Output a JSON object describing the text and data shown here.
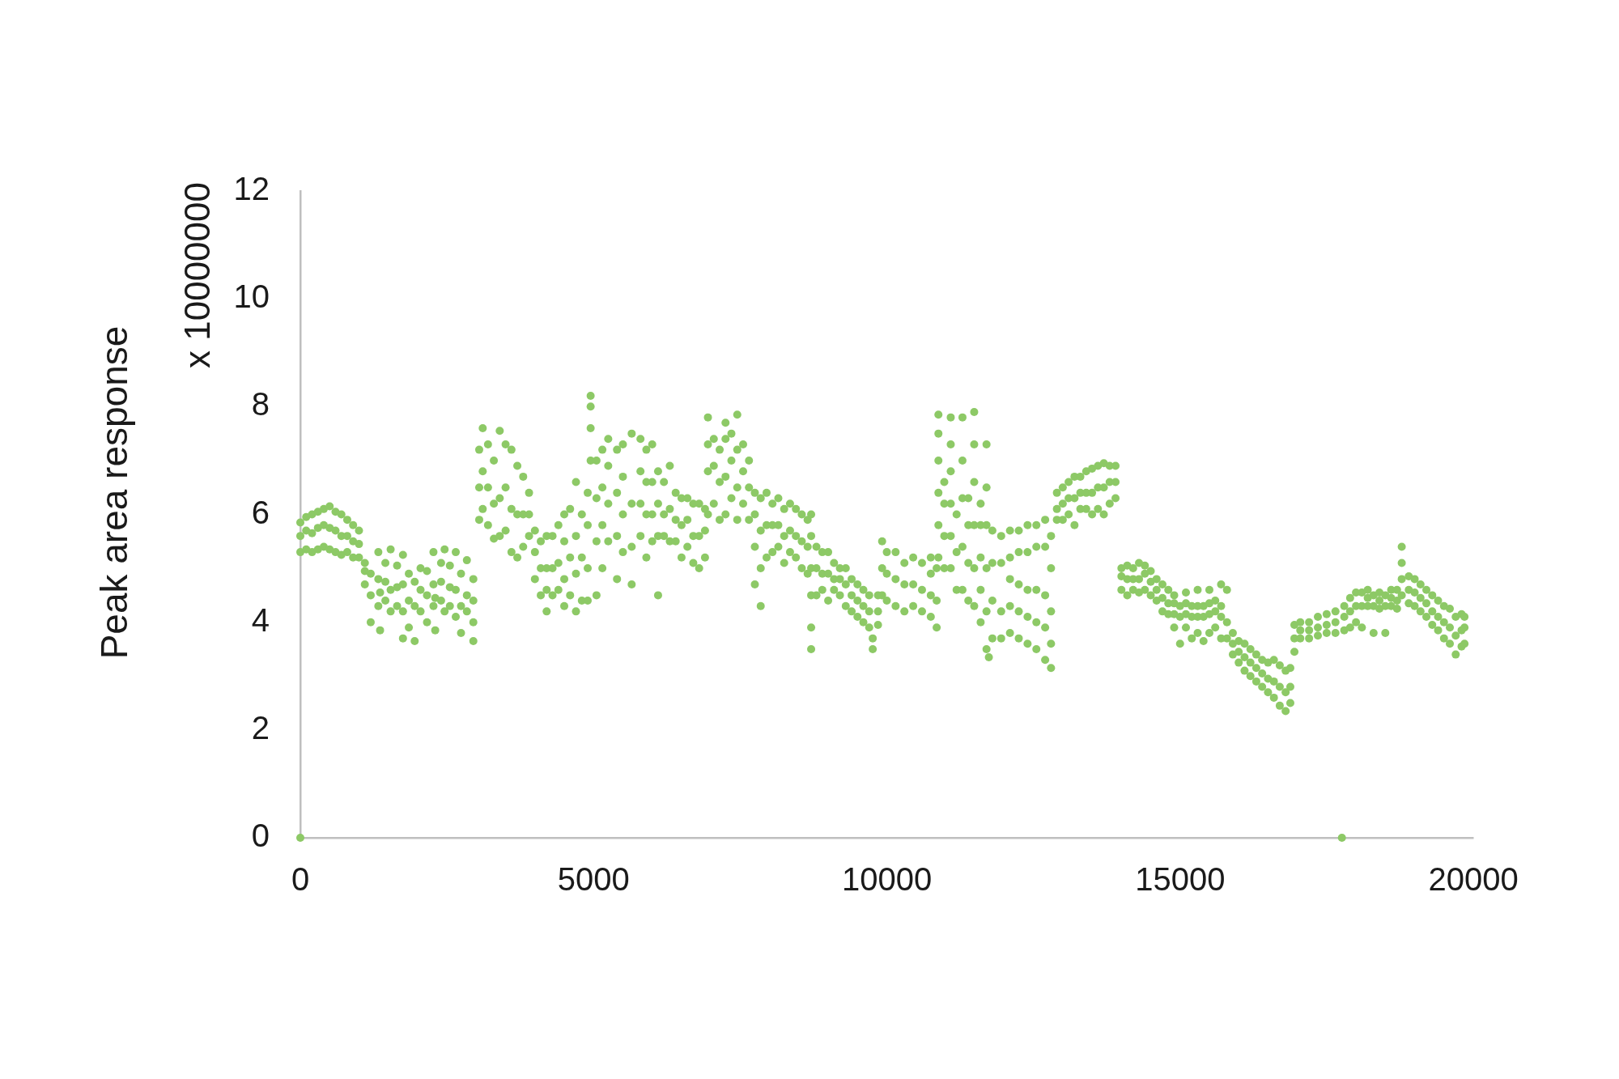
{
  "chart_data": {
    "type": "scatter",
    "ylabel": "Peak area response",
    "annotations": [
      "x 10000000"
    ],
    "color": "#8dc966",
    "marker": "circle",
    "xlim": [
      0,
      20000
    ],
    "xticks": [
      0,
      5000,
      10000,
      15000,
      20000
    ],
    "ylim": [
      0,
      12
    ],
    "yticks": [
      0,
      2,
      4,
      6,
      8,
      10,
      12
    ],
    "x": [
      0,
      0,
      0,
      0,
      100,
      100,
      100,
      200,
      200,
      200,
      300,
      300,
      300,
      400,
      400,
      400,
      500,
      500,
      500,
      600,
      600,
      600,
      700,
      700,
      700,
      800,
      800,
      800,
      900,
      900,
      900,
      1000,
      1000,
      1000,
      1100,
      1100,
      1100,
      1200,
      1200,
      1200,
      1330,
      1330,
      1330,
      1360,
      1360,
      1450,
      1450,
      1450,
      1540,
      1540,
      1540,
      1650,
      1650,
      1650,
      1750,
      1750,
      1750,
      1750,
      1850,
      1850,
      1850,
      1950,
      1950,
      1950,
      2050,
      2050,
      2050,
      2160,
      2160,
      2160,
      2270,
      2270,
      2270,
      2300,
      2300,
      2400,
      2400,
      2400,
      2460,
      2460,
      2550,
      2550,
      2550,
      2650,
      2650,
      2650,
      2740,
      2740,
      2740,
      2840,
      2840,
      2840,
      2950,
      2950,
      2950,
      2950,
      3050,
      3050,
      3050,
      3110,
      3110,
      3110,
      3200,
      3200,
      3200,
      3300,
      3300,
      3300,
      3400,
      3400,
      3400,
      3500,
      3500,
      3500,
      3600,
      3600,
      3600,
      3700,
      3700,
      3700,
      3800,
      3800,
      3800,
      3900,
      3900,
      3900,
      4000,
      4000,
      4000,
      4100,
      4100,
      4100,
      4200,
      4200,
      4200,
      4200,
      4300,
      4300,
      4300,
      4400,
      4400,
      4400,
      4500,
      4500,
      4500,
      4500,
      4600,
      4600,
      4600,
      4700,
      4700,
      4700,
      4700,
      4800,
      4800,
      4800,
      4900,
      4900,
      4900,
      4900,
      4950,
      4950,
      4950,
      4950,
      5050,
      5050,
      5050,
      5050,
      5150,
      5150,
      5150,
      5150,
      5250,
      5250,
      5250,
      5250,
      5400,
      5400,
      5400,
      5400,
      5500,
      5500,
      5500,
      5500,
      5650,
      5650,
      5650,
      5650,
      5800,
      5800,
      5800,
      5800,
      5900,
      5900,
      5900,
      5900,
      6000,
      6000,
      6000,
      6000,
      6100,
      6100,
      6100,
      6100,
      6200,
      6200,
      6200,
      6300,
      6300,
      6300,
      6400,
      6400,
      6400,
      6500,
      6500,
      6500,
      6600,
      6600,
      6600,
      6700,
      6700,
      6700,
      6800,
      6800,
      6800,
      6900,
      6900,
      6900,
      6950,
      6950,
      6950,
      6950,
      7050,
      7050,
      7050,
      7150,
      7150,
      7150,
      7250,
      7250,
      7250,
      7250,
      7350,
      7350,
      7350,
      7450,
      7450,
      7450,
      7450,
      7550,
      7550,
      7550,
      7650,
      7650,
      7650,
      7750,
      7750,
      7750,
      7750,
      7850,
      7850,
      7850,
      7850,
      7950,
      7950,
      7950,
      8050,
      8050,
      8050,
      8150,
      8150,
      8150,
      8250,
      8250,
      8250,
      8350,
      8350,
      8350,
      8450,
      8450,
      8450,
      8550,
      8550,
      8550,
      8650,
      8650,
      8650,
      8710,
      8710,
      8710,
      8710,
      8710,
      8710,
      8800,
      8800,
      8800,
      8900,
      8900,
      8900,
      9000,
      9000,
      9000,
      9100,
      9100,
      9100,
      9200,
      9200,
      9200,
      9300,
      9300,
      9300,
      9400,
      9400,
      9400,
      9500,
      9500,
      9500,
      9600,
      9600,
      9600,
      9700,
      9700,
      9700,
      9760,
      9760,
      9850,
      9850,
      9850,
      9920,
      9920,
      9920,
      10000,
      10000,
      10000,
      10150,
      10150,
      10150,
      10300,
      10300,
      10300,
      10450,
      10450,
      10450,
      10600,
      10600,
      10600,
      10750,
      10750,
      10750,
      10750,
      10850,
      10850,
      10850,
      10880,
      10880,
      10880,
      10880,
      10880,
      10880,
      10980,
      10980,
      10980,
      10980,
      11090,
      11090,
      11090,
      11090,
      11090,
      11090,
      11190,
      11190,
      11190,
      11290,
      11290,
      11290,
      11290,
      11290,
      11390,
      11390,
      11390,
      11390,
      11490,
      11490,
      11490,
      11490,
      11490,
      11490,
      11600,
      11600,
      11600,
      11600,
      11600,
      11700,
      11700,
      11700,
      11700,
      11700,
      11700,
      11740,
      11800,
      11800,
      11800,
      11800,
      11950,
      11950,
      11950,
      11950,
      12100,
      12100,
      12100,
      12100,
      12100,
      12250,
      12250,
      12250,
      12250,
      12250,
      12400,
      12400,
      12400,
      12400,
      12400,
      12550,
      12550,
      12550,
      12550,
      12550,
      12700,
      12700,
      12700,
      12700,
      12700,
      12800,
      12800,
      12800,
      12800,
      12800,
      12900,
      12900,
      12900,
      13000,
      13000,
      13000,
      13100,
      13100,
      13100,
      13200,
      13200,
      13200,
      13300,
      13300,
      13300,
      13400,
      13400,
      13400,
      13500,
      13500,
      13500,
      13600,
      13600,
      13600,
      13700,
      13700,
      13700,
      13800,
      13800,
      13800,
      13900,
      13900,
      13900,
      14000,
      14000,
      14000,
      14100,
      14100,
      14100,
      14200,
      14200,
      14200,
      14300,
      14300,
      14300,
      14400,
      14400,
      14400,
      14500,
      14500,
      14500,
      14600,
      14600,
      14600,
      14700,
      14700,
      14700,
      14800,
      14800,
      14800,
      14900,
      14900,
      14900,
      14900,
      15000,
      15000,
      15000,
      15100,
      15100,
      15100,
      15100,
      15200,
      15200,
      15200,
      15300,
      15300,
      15300,
      15300,
      15400,
      15400,
      15400,
      15500,
      15500,
      15500,
      15500,
      15600,
      15600,
      15600,
      15700,
      15700,
      15700,
      15700,
      15800,
      15800,
      15800,
      15900,
      15900,
      15900,
      16000,
      16000,
      16000,
      16100,
      16100,
      16100,
      16200,
      16200,
      16200,
      16300,
      16300,
      16300,
      16400,
      16400,
      16400,
      16500,
      16500,
      16500,
      16600,
      16600,
      16600,
      16700,
      16700,
      16700,
      16800,
      16800,
      16800,
      16880,
      16880,
      16880,
      16950,
      16950,
      16950,
      17050,
      17050,
      17050,
      17200,
      17200,
      17200,
      17350,
      17350,
      17350,
      17500,
      17500,
      17500,
      17650,
      17650,
      17650,
      17760,
      17800,
      17800,
      17800,
      17900,
      17900,
      17900,
      18000,
      18000,
      18000,
      18100,
      18100,
      18100,
      18200,
      18200,
      18200,
      18300,
      18300,
      18300,
      18400,
      18400,
      18400,
      18500,
      18500,
      18500,
      18600,
      18600,
      18600,
      18700,
      18700,
      18700,
      18780,
      18780,
      18780,
      18780,
      18900,
      18900,
      18900,
      19000,
      19000,
      19000,
      19100,
      19100,
      19100,
      19200,
      19200,
      19200,
      19300,
      19300,
      19300,
      19400,
      19400,
      19400,
      19500,
      19500,
      19500,
      19600,
      19600,
      19600,
      19700,
      19700,
      19700,
      19800,
      19800,
      19800,
      19850,
      19850,
      19850
    ],
    "values": [
      0,
      5.3,
      5.6,
      5.85,
      5.35,
      5.7,
      5.95,
      5.3,
      5.65,
      6.0,
      5.35,
      5.75,
      6.05,
      5.4,
      5.8,
      6.1,
      5.35,
      5.75,
      6.15,
      5.3,
      5.7,
      6.05,
      5.25,
      5.6,
      6.0,
      5.3,
      5.6,
      5.9,
      5.2,
      5.5,
      5.8,
      5.2,
      5.45,
      5.7,
      4.7,
      4.95,
      5.1,
      4.0,
      4.5,
      4.9,
      4.3,
      4.8,
      5.3,
      3.85,
      4.55,
      4.4,
      4.75,
      5.1,
      4.2,
      4.6,
      5.35,
      4.3,
      4.65,
      5.05,
      3.7,
      4.2,
      4.7,
      5.25,
      3.9,
      4.4,
      4.9,
      3.65,
      4.3,
      4.75,
      4.2,
      4.6,
      5.0,
      4.0,
      4.5,
      4.95,
      4.3,
      4.7,
      5.3,
      3.85,
      4.45,
      4.4,
      4.75,
      5.1,
      4.2,
      5.35,
      4.3,
      4.65,
      5.05,
      4.1,
      4.6,
      5.3,
      3.8,
      4.3,
      4.9,
      4.2,
      4.5,
      5.15,
      3.65,
      4.0,
      4.4,
      4.8,
      5.9,
      6.5,
      7.2,
      6.1,
      6.8,
      7.6,
      5.8,
      6.5,
      7.3,
      5.55,
      6.2,
      7.0,
      5.6,
      6.3,
      7.55,
      5.7,
      6.5,
      7.3,
      5.3,
      6.1,
      7.2,
      5.2,
      6.0,
      6.9,
      5.4,
      6.0,
      6.7,
      5.6,
      6.0,
      6.4,
      4.8,
      5.3,
      5.7,
      4.5,
      5.0,
      5.5,
      4.2,
      4.6,
      5.0,
      5.6,
      4.5,
      5.0,
      5.6,
      4.6,
      5.1,
      5.8,
      4.3,
      4.8,
      5.5,
      6.0,
      4.5,
      5.2,
      6.1,
      4.2,
      4.9,
      5.6,
      6.6,
      4.4,
      5.2,
      6.0,
      4.4,
      5.0,
      5.8,
      6.4,
      7.0,
      7.6,
      8.0,
      8.2,
      4.5,
      5.5,
      6.3,
      7.0,
      5.0,
      5.8,
      6.5,
      7.2,
      5.5,
      6.2,
      6.9,
      7.4,
      4.8,
      5.6,
      6.4,
      7.2,
      5.3,
      6.0,
      6.7,
      7.3,
      4.7,
      5.4,
      6.2,
      7.5,
      5.6,
      6.2,
      6.8,
      7.4,
      5.2,
      6.0,
      6.6,
      7.2,
      5.5,
      6.0,
      6.6,
      7.3,
      4.5,
      5.6,
      6.2,
      6.8,
      5.6,
      6.0,
      6.6,
      5.5,
      6.1,
      6.9,
      5.5,
      5.9,
      6.4,
      5.2,
      5.8,
      6.3,
      5.4,
      5.9,
      6.3,
      5.1,
      5.6,
      6.2,
      5.0,
      5.6,
      6.2,
      5.2,
      5.7,
      6.1,
      6.0,
      6.8,
      7.3,
      7.8,
      6.2,
      6.9,
      7.4,
      5.9,
      6.6,
      7.2,
      6.0,
      6.7,
      7.4,
      7.7,
      6.3,
      7.0,
      7.5,
      5.9,
      6.5,
      7.2,
      7.85,
      6.2,
      6.8,
      7.3,
      5.9,
      6.5,
      7.0,
      4.7,
      5.4,
      6.0,
      6.4,
      4.3,
      5.0,
      5.7,
      6.3,
      5.2,
      5.8,
      6.4,
      5.3,
      5.8,
      6.2,
      5.4,
      5.8,
      6.3,
      5.1,
      5.6,
      6.1,
      5.3,
      5.7,
      6.2,
      5.2,
      5.6,
      6.1,
      5.0,
      5.5,
      6.0,
      4.9,
      5.4,
      5.9,
      3.5,
      3.9,
      4.5,
      5.0,
      5.6,
      6.0,
      4.5,
      5.0,
      5.4,
      4.6,
      4.9,
      5.3,
      4.4,
      4.9,
      5.3,
      4.6,
      4.8,
      5.1,
      4.5,
      4.8,
      5.0,
      4.3,
      4.7,
      5.0,
      4.2,
      4.5,
      4.8,
      4.1,
      4.4,
      4.7,
      4.0,
      4.3,
      4.6,
      3.9,
      4.2,
      4.5,
      3.5,
      3.7,
      3.95,
      4.2,
      4.5,
      4.5,
      5.0,
      5.5,
      4.4,
      4.9,
      5.3,
      4.3,
      4.8,
      5.3,
      4.2,
      4.7,
      5.1,
      4.3,
      4.7,
      5.2,
      4.2,
      4.6,
      5.1,
      4.1,
      4.5,
      4.9,
      5.2,
      3.9,
      4.4,
      5.0,
      5.2,
      5.8,
      6.4,
      7.0,
      7.5,
      7.85,
      5.0,
      5.6,
      6.2,
      6.6,
      5.0,
      5.6,
      6.2,
      6.8,
      7.3,
      7.8,
      4.6,
      5.3,
      6.0,
      4.6,
      5.4,
      6.3,
      7.0,
      7.8,
      4.4,
      5.1,
      5.8,
      6.3,
      4.3,
      5.0,
      5.8,
      6.6,
      7.3,
      7.9,
      4.0,
      4.6,
      5.2,
      5.8,
      6.2,
      3.5,
      4.2,
      5.0,
      5.8,
      6.5,
      7.3,
      3.35,
      3.7,
      4.4,
      5.1,
      5.7,
      3.7,
      4.2,
      5.1,
      5.6,
      3.8,
      4.3,
      4.8,
      5.2,
      5.7,
      3.7,
      4.2,
      4.7,
      5.3,
      5.7,
      3.6,
      4.1,
      4.6,
      5.3,
      5.8,
      3.5,
      4.0,
      4.6,
      5.4,
      5.8,
      3.3,
      3.9,
      4.5,
      5.4,
      5.9,
      3.15,
      3.6,
      4.2,
      5.0,
      5.6,
      5.9,
      6.1,
      6.4,
      5.9,
      6.2,
      6.5,
      6.0,
      6.3,
      6.6,
      5.8,
      6.3,
      6.7,
      6.1,
      6.4,
      6.7,
      6.1,
      6.4,
      6.8,
      6.0,
      6.4,
      6.85,
      6.1,
      6.5,
      6.9,
      6.0,
      6.5,
      6.95,
      6.2,
      6.6,
      6.9,
      6.3,
      6.6,
      6.9,
      4.6,
      4.85,
      5.0,
      4.5,
      4.8,
      5.05,
      4.6,
      4.8,
      5.0,
      4.55,
      4.8,
      5.1,
      4.6,
      4.9,
      5.05,
      4.5,
      4.75,
      4.95,
      4.4,
      4.6,
      4.8,
      4.2,
      4.45,
      4.7,
      4.15,
      4.35,
      4.6,
      3.9,
      4.15,
      4.35,
      4.5,
      3.6,
      4.1,
      4.3,
      3.9,
      4.15,
      4.35,
      4.55,
      3.7,
      4.1,
      4.3,
      3.8,
      4.1,
      4.3,
      4.6,
      3.65,
      4.1,
      4.3,
      3.8,
      4.15,
      4.35,
      4.6,
      3.9,
      4.2,
      4.4,
      3.7,
      4.1,
      4.3,
      4.7,
      3.7,
      4.0,
      4.6,
      3.4,
      3.6,
      3.8,
      3.25,
      3.45,
      3.65,
      3.1,
      3.35,
      3.6,
      3.0,
      3.25,
      3.5,
      2.9,
      3.15,
      3.4,
      2.8,
      3.05,
      3.3,
      2.7,
      2.95,
      3.25,
      2.6,
      2.9,
      3.3,
      2.45,
      2.8,
      3.2,
      2.35,
      2.7,
      3.1,
      2.5,
      2.8,
      3.15,
      3.45,
      3.7,
      3.95,
      3.7,
      3.85,
      4.0,
      3.7,
      3.85,
      4.0,
      3.75,
      3.9,
      4.1,
      3.8,
      3.95,
      4.15,
      3.8,
      4.0,
      4.2,
      0,
      3.85,
      4.1,
      4.3,
      3.9,
      4.2,
      4.45,
      4.0,
      4.3,
      4.55,
      3.9,
      4.3,
      4.55,
      4.3,
      4.45,
      4.6,
      3.8,
      4.3,
      4.5,
      4.25,
      4.4,
      4.55,
      3.8,
      4.3,
      4.5,
      4.3,
      4.45,
      4.6,
      4.25,
      4.4,
      4.6,
      4.5,
      4.8,
      5.1,
      5.4,
      4.35,
      4.6,
      4.85,
      4.3,
      4.55,
      4.8,
      4.2,
      4.45,
      4.7,
      4.1,
      4.35,
      4.6,
      3.95,
      4.2,
      4.5,
      3.85,
      4.1,
      4.4,
      3.7,
      4.0,
      4.3,
      3.6,
      3.9,
      4.25,
      3.4,
      3.75,
      4.1,
      3.55,
      3.85,
      4.15,
      3.6,
      3.9,
      4.1
    ]
  }
}
